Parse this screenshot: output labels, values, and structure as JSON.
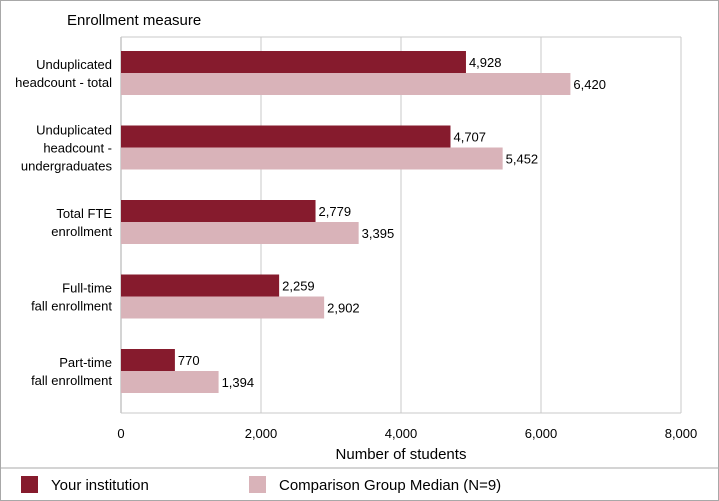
{
  "chart_data": {
    "type": "bar",
    "orientation": "horizontal",
    "title": "Enrollment measure",
    "xlabel": "Number of students",
    "ylabel": "Enrollment measure",
    "xlim": [
      0,
      8000
    ],
    "xticks": [
      0,
      2000,
      4000,
      6000,
      8000
    ],
    "xtick_labels": [
      "0",
      "2,000",
      "4,000",
      "6,000",
      "8,000"
    ],
    "grid": "vertical",
    "legend_position": "bottom",
    "categories": [
      [
        "Unduplicated",
        "headcount - total"
      ],
      [
        "Unduplicated",
        "headcount -",
        "undergraduates"
      ],
      [
        "Total FTE",
        "enrollment"
      ],
      [
        "Full-time",
        "fall enrollment"
      ],
      [
        "Part-time",
        "fall enrollment"
      ]
    ],
    "series": [
      {
        "name": "Your institution",
        "color": "#861b2d",
        "values": [
          4928,
          4707,
          2779,
          2259,
          770
        ],
        "labels": [
          "4,928",
          "4,707",
          "2,779",
          "2,259",
          "770"
        ]
      },
      {
        "name": "Comparison Group Median (N=9)",
        "color": "#d9b3b9",
        "values": [
          6420,
          5452,
          3395,
          2902,
          1394
        ],
        "labels": [
          "6,420",
          "5,452",
          "3,395",
          "2,902",
          "1,394"
        ]
      }
    ]
  },
  "colors": {
    "gridline": "#c8c8c8",
    "axis": "#a8a8a8",
    "separator": "#a8a8a8"
  }
}
